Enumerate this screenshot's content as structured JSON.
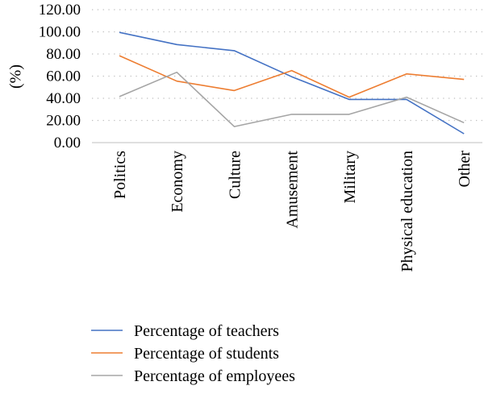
{
  "chart_data": {
    "type": "line",
    "title": "",
    "xlabel": "",
    "ylabel": "(%)",
    "categories": [
      "Politics",
      "Economy",
      "Culture",
      "Amusement",
      "Military",
      "Physical education",
      "Other"
    ],
    "ylim": [
      0,
      120
    ],
    "yticks": [
      "0.00",
      "20.00",
      "40.00",
      "60.00",
      "80.00",
      "100.00",
      "120.00"
    ],
    "grid": "horizontal dotted",
    "legend_position": "bottom",
    "series": [
      {
        "name": "Percentage of teachers",
        "color": "#4472c4",
        "values": [
          99.5,
          88.5,
          83,
          59.5,
          39,
          39,
          8
        ]
      },
      {
        "name": "Percentage of students",
        "color": "#ed7d31",
        "values": [
          78.5,
          55.5,
          47,
          65,
          41,
          62,
          57
        ]
      },
      {
        "name": "Percentage of employees",
        "color": "#a5a5a5",
        "values": [
          41.5,
          63.5,
          14.5,
          25.5,
          25.5,
          41,
          18
        ]
      }
    ]
  }
}
